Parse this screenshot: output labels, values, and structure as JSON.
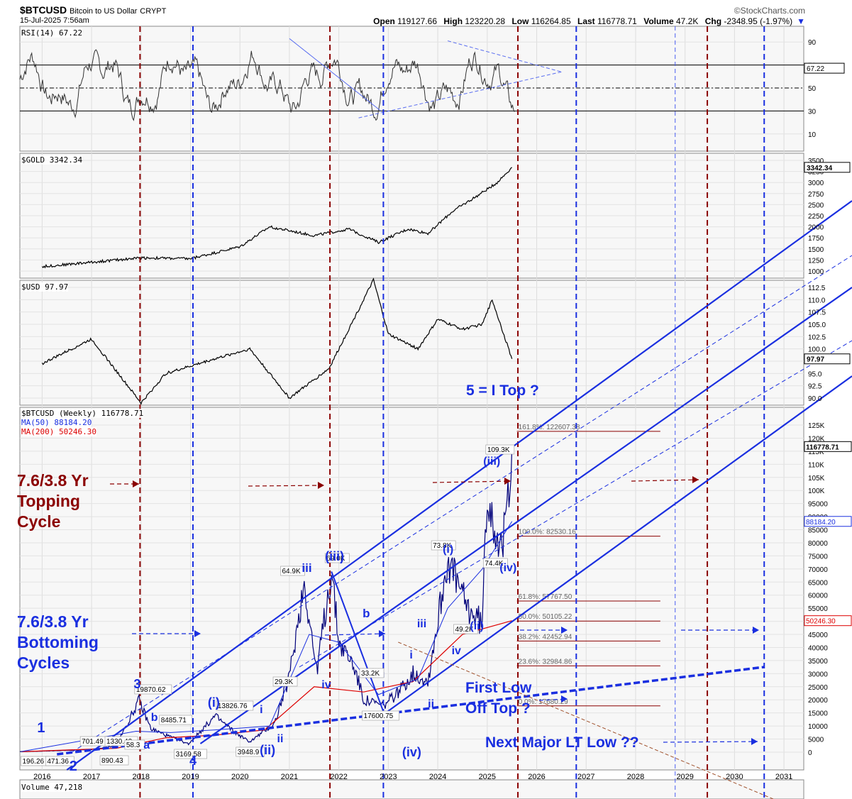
{
  "header": {
    "symbol": "$BTCUSD",
    "description": "Bitcoin to US Dollar",
    "exchange": "CRYPT",
    "date": "15-Jul-2025 7:56am",
    "brand": "©StockCharts.com",
    "open_label": "Open",
    "open": "119127.66",
    "high_label": "High",
    "high": "123220.28",
    "low_label": "Low",
    "low": "116264.85",
    "last_label": "Last",
    "last": "116778.71",
    "volume_label": "Volume",
    "volume": "47.2K",
    "chg_label": "Chg",
    "chg": "-2348.95 (-1.97%)"
  },
  "panels": {
    "rsi_label": "RSI(14) 67.22",
    "gold_label": "$GOLD 3342.34",
    "usd_label": "$USD 97.97",
    "btc_label": "$BTCUSD (Weekly) 116778.71",
    "ma50_label": "MA(50) 88184.20",
    "ma200_label": "MA(200) 50246.30",
    "volume_label": "Volume 47,218"
  },
  "annotations": {
    "topping": "7.6/3.8 Yr\nTopping\nCycle",
    "bottoming": "7.6/3.8 Yr\nBottoming\nCycles",
    "top_question": "5 = I Top ?",
    "first_low": "First Low\nOff Top ?",
    "next_low": "Next Major LT Low ??"
  },
  "chart_data": [
    {
      "type": "line",
      "title": "RSI(14) 67.22",
      "y_ticks": [
        10,
        30,
        50,
        70,
        90
      ],
      "ylim": [
        0,
        100
      ],
      "horizontal_lines": [
        30,
        50,
        70
      ],
      "last_value": "67.22"
    },
    {
      "type": "line",
      "title": "$GOLD 3342.34",
      "y_ticks": [
        1000,
        1250,
        1500,
        1750,
        2000,
        2250,
        2500,
        2750,
        3000,
        3250,
        3500
      ],
      "last_value": "3342.34",
      "series": [
        {
          "name": "$GOLD",
          "x": [
            2016.0,
            2017.0,
            2018.0,
            2019.0,
            2020.0,
            2020.6,
            2021.5,
            2022.2,
            2022.8,
            2023.4,
            2023.8,
            2024.3,
            2024.8,
            2025.2,
            2025.5
          ],
          "values": [
            1100,
            1200,
            1300,
            1280,
            1550,
            2000,
            1800,
            1950,
            1650,
            1950,
            1850,
            2350,
            2700,
            3000,
            3342
          ]
        }
      ]
    },
    {
      "type": "line",
      "title": "$USD 97.97",
      "y_ticks": [
        90.0,
        92.5,
        95.0,
        97.5,
        100.0,
        102.5,
        105.0,
        107.5,
        110.0,
        112.5
      ],
      "last_value": "97.97",
      "series": [
        {
          "name": "$USD",
          "x": [
            2016.0,
            2017.0,
            2018.0,
            2018.5,
            2019.5,
            2020.2,
            2021.0,
            2021.8,
            2022.7,
            2023.0,
            2023.6,
            2024.0,
            2024.5,
            2024.9,
            2025.1,
            2025.5
          ],
          "values": [
            97,
            102,
            89,
            95,
            98,
            100,
            90,
            96,
            114,
            103,
            100,
            106,
            104,
            105,
            110,
            97.97
          ]
        }
      ]
    },
    {
      "type": "line",
      "title": "$BTCUSD (Weekly) 116778.71",
      "x_ticks": [
        "2016",
        "2017",
        "2018",
        "2019",
        "2020",
        "2021",
        "2022",
        "2023",
        "2024",
        "2025",
        "2026",
        "2027",
        "2028",
        "2029",
        "2030",
        "2031"
      ],
      "y_ticks": [
        "0",
        "5000",
        "10000",
        "15000",
        "20000",
        "25000",
        "30000",
        "35000",
        "40000",
        "45000",
        "50000",
        "55000",
        "60000",
        "65000",
        "70000",
        "75000",
        "80000",
        "85000",
        "90000",
        "95000",
        "100K",
        "105K",
        "110K",
        "115K",
        "120K",
        "125K"
      ],
      "ylim": [
        0,
        125000
      ],
      "last_value": "116778.71",
      "ma50_value": "88184.20",
      "ma200_value": "50246.30",
      "fib_levels": [
        "161.8%: 122607.38",
        "100.0%: 82530.16",
        "61.8%: 57767.50",
        "50.0%: 50105.22",
        "38.2%: 42452.94",
        "23.6%: 32984.86",
        "0.0%: 17680.29"
      ],
      "price_labels": [
        "196.26",
        "471.36",
        "701.49",
        "890.43",
        "1330.42",
        "19870.62",
        "8485.71",
        "3169.58",
        "13826.76",
        "3948.9",
        "64.9K",
        "69.0K",
        "33.2K",
        "17600.75",
        "73.8K",
        "49.2K",
        "74.4K",
        "109.3K",
        "58.3",
        "29.3K"
      ],
      "wave_labels": [
        "1",
        "2",
        "3",
        "4",
        "b",
        "a",
        "(i)",
        "(ii)",
        "i",
        "ii",
        "iii",
        "iv",
        "(iii)",
        "b",
        "(iv)",
        "i",
        "ii",
        "iii",
        "iv",
        "(i)",
        "(ii)",
        "(iii)",
        "(iv)"
      ],
      "series": [
        {
          "name": "$BTCUSD",
          "x": [
            2015.55,
            2016.0,
            2016.55,
            2017.0,
            2017.5,
            2017.96,
            2018.2,
            2018.5,
            2018.96,
            2019.5,
            2019.9,
            2020.2,
            2020.7,
            2021.0,
            2021.3,
            2021.55,
            2021.85,
            2022.0,
            2022.3,
            2022.5,
            2022.9,
            2023.2,
            2023.5,
            2023.8,
            2024.2,
            2024.6,
            2024.9,
            2025.0,
            2025.3,
            2025.5
          ],
          "values": [
            196.26,
            400,
            701.49,
            1000,
            2500,
            19870.62,
            9000,
            6500,
            3169.58,
            13826.76,
            7500,
            3948.9,
            11000,
            29000,
            64900,
            31000,
            69000,
            42000,
            33200,
            20000,
            17600.75,
            23000,
            30000,
            27000,
            73800,
            55000,
            49200,
            100000,
            74400,
            116778.71
          ]
        }
      ]
    }
  ]
}
